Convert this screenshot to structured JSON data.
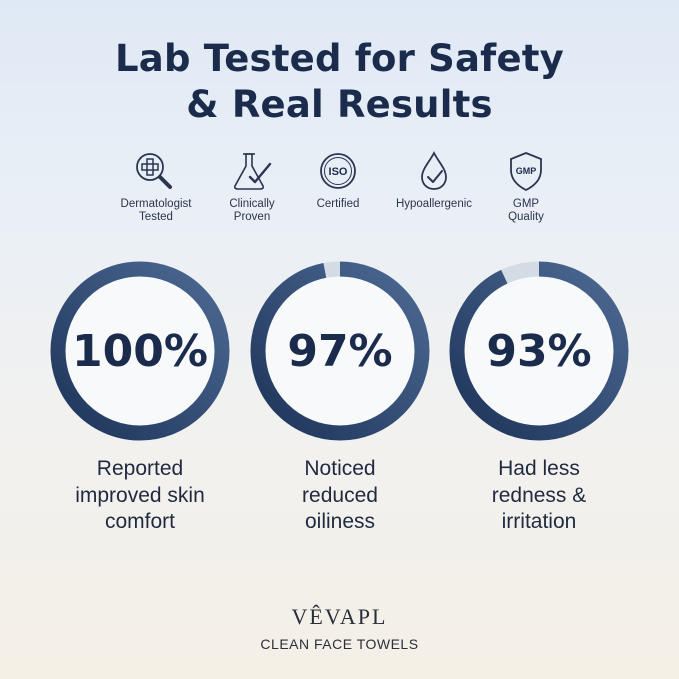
{
  "title": {
    "line1": "Lab Tested for Safety",
    "line2": "& Real Results"
  },
  "badges": [
    {
      "icon": "magnifier-plus-icon",
      "label_line1": "Dermatologist",
      "label_line2": "Tested"
    },
    {
      "icon": "flask-check-icon",
      "label_line1": "Clinically",
      "label_line2": "Proven"
    },
    {
      "icon": "iso-seal-icon",
      "label_line1": "Certified",
      "label_line2": "",
      "seal_text": "ISO"
    },
    {
      "icon": "droplet-check-icon",
      "label_line1": "Hypoallergenic",
      "label_line2": ""
    },
    {
      "icon": "gmp-shield-icon",
      "label_line1": "GMP",
      "label_line2": "Quality",
      "seal_text": "GMP"
    }
  ],
  "stats": [
    {
      "percent_text": "100%",
      "value": 100,
      "desc_line1": "Reported",
      "desc_line2": "improved skin",
      "desc_line3": "comfort"
    },
    {
      "percent_text": "97%",
      "value": 97,
      "desc_line1": "Noticed",
      "desc_line2": "reduced",
      "desc_line3": "oiliness"
    },
    {
      "percent_text": "93%",
      "value": 93,
      "desc_line1": "Had less",
      "desc_line2": "redness &",
      "desc_line3": "irritation"
    }
  ],
  "brand": {
    "name": "VÊVAPL",
    "tagline": "CLEAN FACE TOWELS"
  },
  "colors": {
    "ring_dark": "#1e3459",
    "ring_light": "#4d6a94",
    "ring_track": "#d3dbe5",
    "text_dark": "#1b2b4c"
  }
}
